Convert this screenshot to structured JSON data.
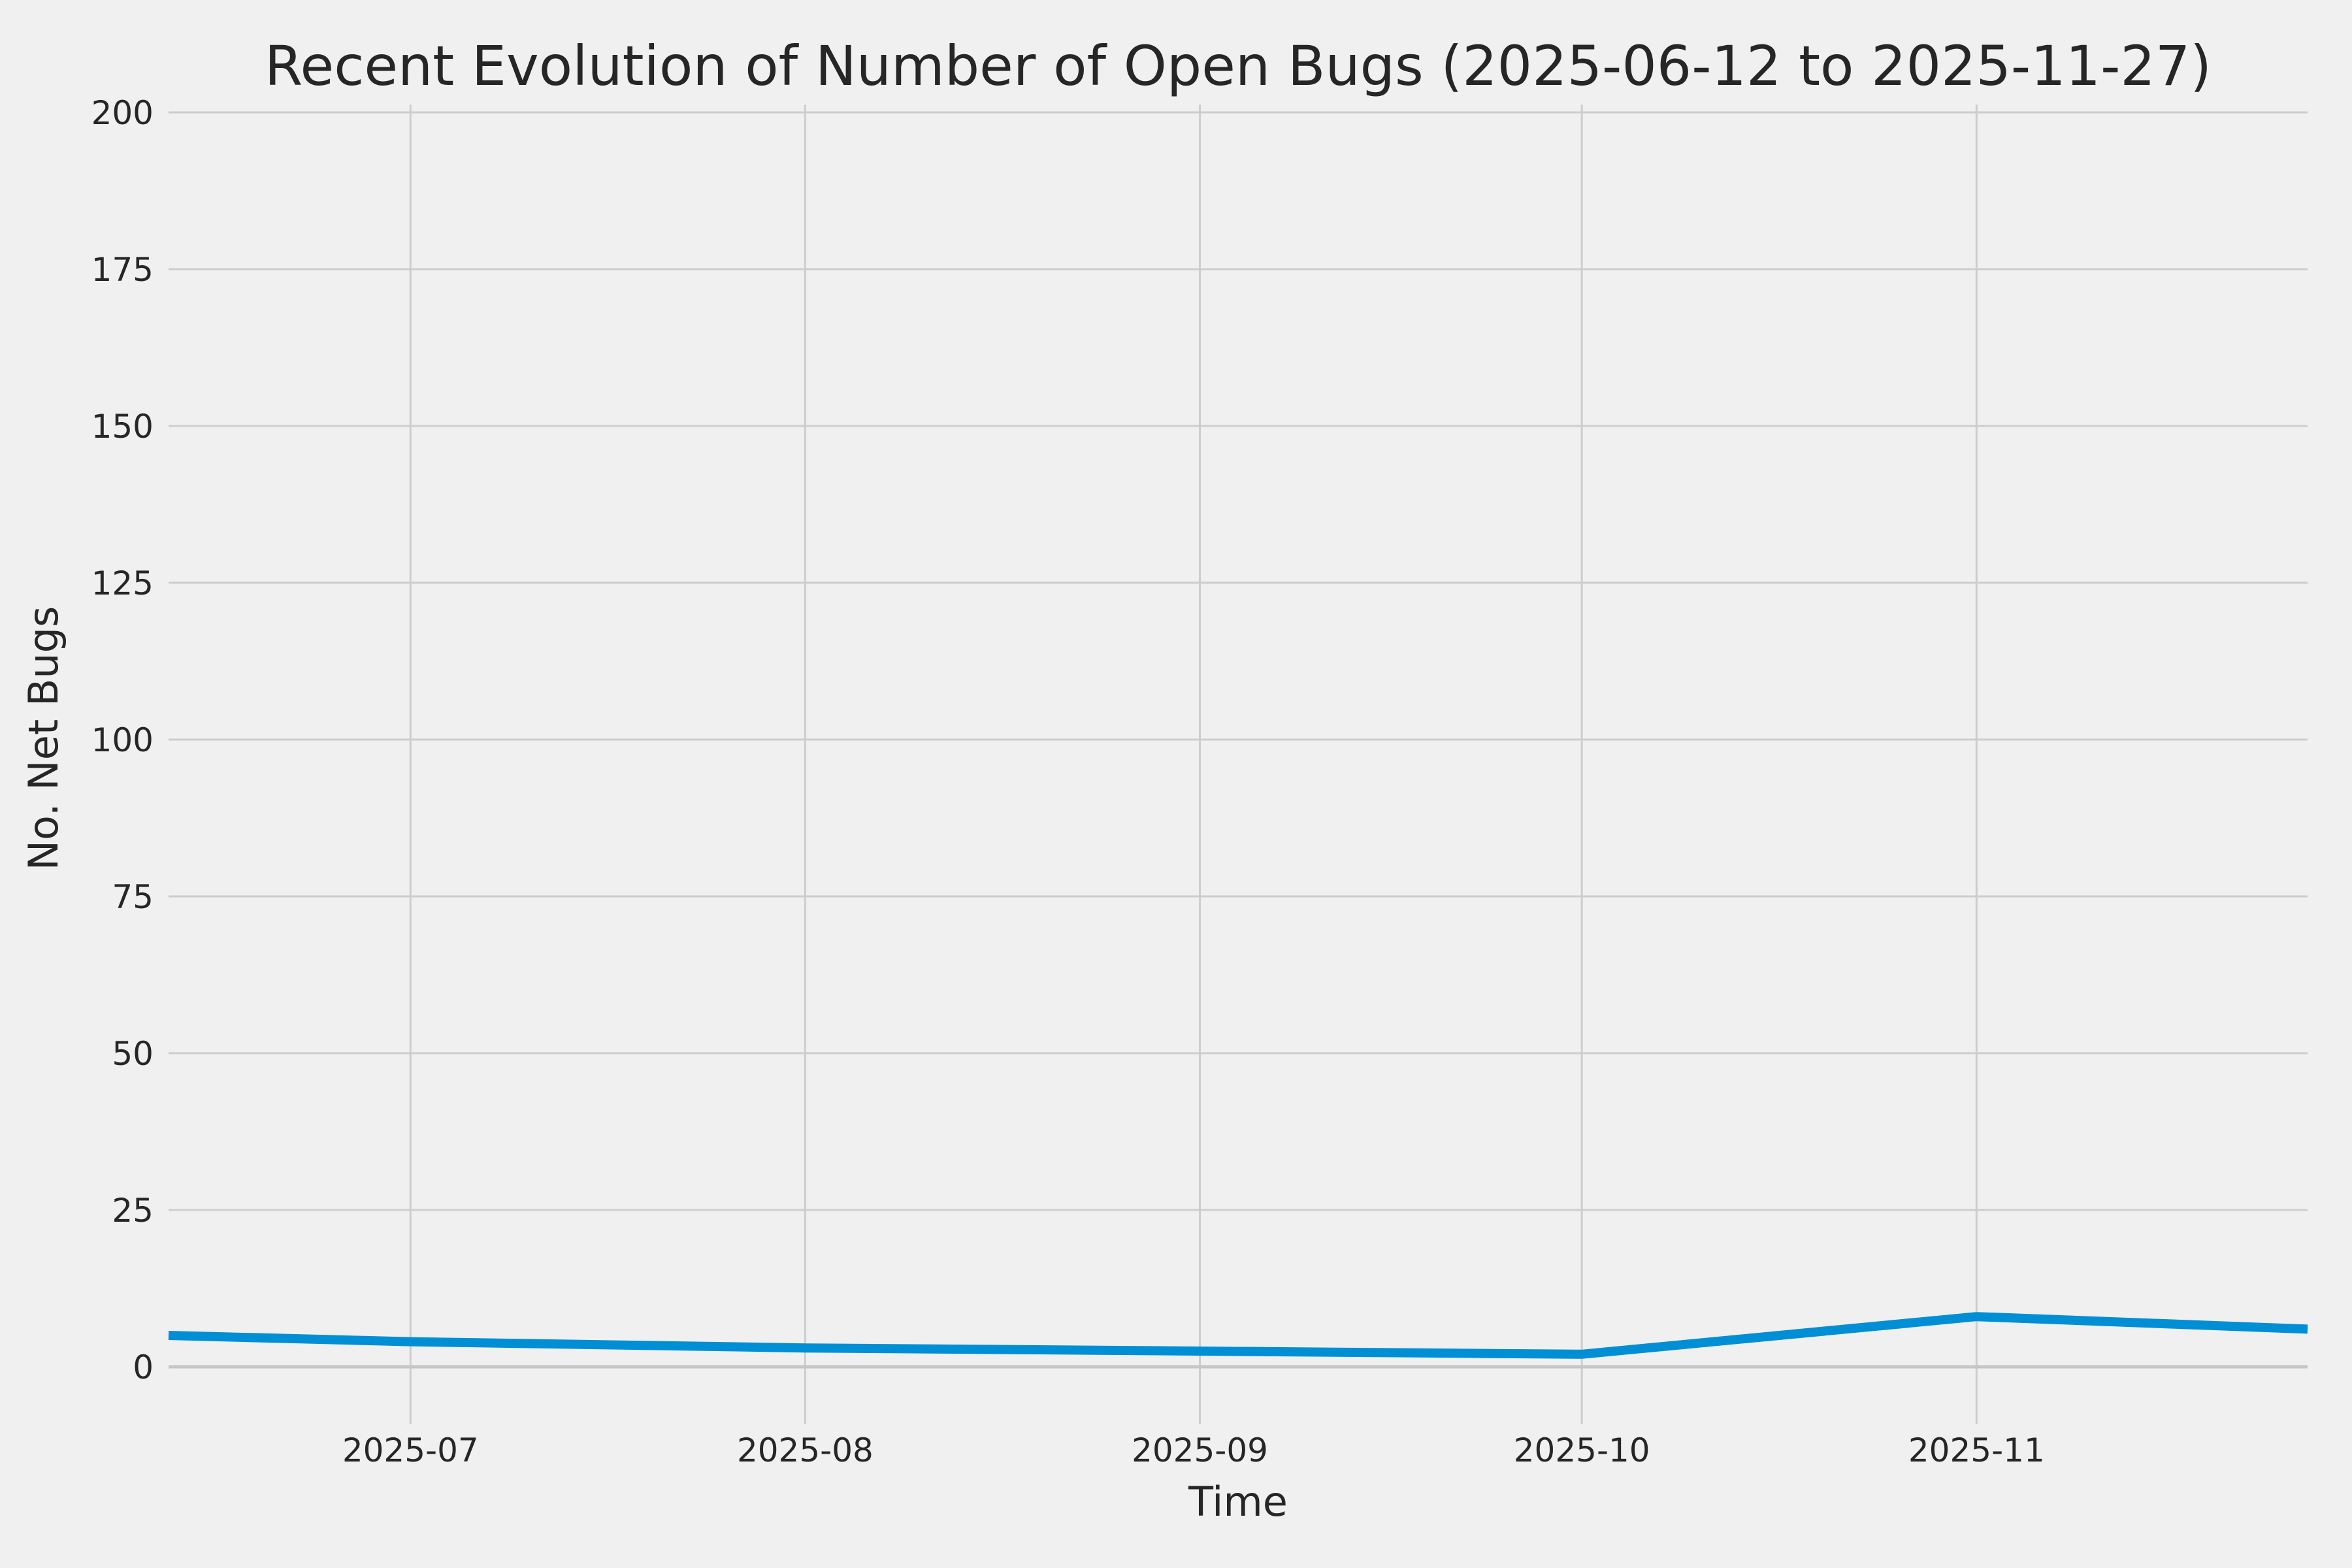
{
  "chart_data": {
    "type": "line",
    "title": "Recent Evolution of Number of Open Bugs (2025-06-12 to 2025-11-27)",
    "xlabel": "Time",
    "ylabel": "No. Net Bugs",
    "x_range": [
      "2025-06-12",
      "2025-11-27"
    ],
    "series": [
      {
        "name": "open-bugs",
        "x": [
          "2025-06-12",
          "2025-07-01",
          "2025-08-01",
          "2025-09-01",
          "2025-10-01",
          "2025-11-01",
          "2025-11-27"
        ],
        "values": [
          5,
          4,
          3,
          2.5,
          2,
          8,
          6
        ]
      }
    ],
    "x_ticks": [
      {
        "date": "2025-07-01",
        "label": "2025-07"
      },
      {
        "date": "2025-08-01",
        "label": "2025-08"
      },
      {
        "date": "2025-09-01",
        "label": "2025-09"
      },
      {
        "date": "2025-10-01",
        "label": "2025-10"
      },
      {
        "date": "2025-11-01",
        "label": "2025-11"
      }
    ],
    "y_ticks": [
      0,
      25,
      50,
      75,
      100,
      125,
      150,
      175,
      200
    ],
    "ylim": [
      -9,
      201
    ],
    "grid": true,
    "legend": false,
    "zero_line": true,
    "colors": {
      "line": "#008FD5",
      "background": "#F0F0F0",
      "grid": "#CDCDCD",
      "zero_line": "#C6C6C6",
      "text": "#262626"
    }
  }
}
